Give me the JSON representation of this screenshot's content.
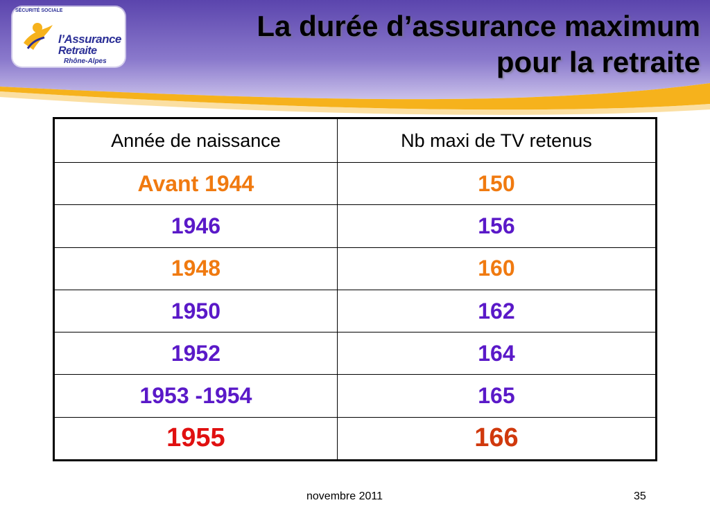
{
  "slide": {
    "title_line1": "La durée d’assurance maximum",
    "title_line2": "pour la retraite",
    "logo": {
      "arc_text": "SÉCURITÉ SOCIALE",
      "name_line1": "l’Assurance",
      "name_line2": "Retraite",
      "region": "Rhône-Alpes"
    },
    "colors": {
      "banner_purple": "#6a55b8",
      "banner_yellow": "#f6b21c",
      "value_orange": "#f07a10",
      "value_purple": "#5a19c8",
      "value_red": "#e01010",
      "value_rust": "#d0390d"
    }
  },
  "table": {
    "headers": [
      "Année de naissance",
      "Nb maxi de TV retenus"
    ],
    "rows": [
      {
        "year": "Avant 1944",
        "value": "150"
      },
      {
        "year": "1946",
        "value": "156"
      },
      {
        "year": "1948",
        "value": "160"
      },
      {
        "year": "1950",
        "value": "162"
      },
      {
        "year": "1952",
        "value": "164"
      },
      {
        "year": "1953 -1954",
        "value": "165"
      },
      {
        "year": "1955",
        "value": "166"
      }
    ]
  },
  "footer": {
    "date": "novembre 2011",
    "page": "35"
  }
}
